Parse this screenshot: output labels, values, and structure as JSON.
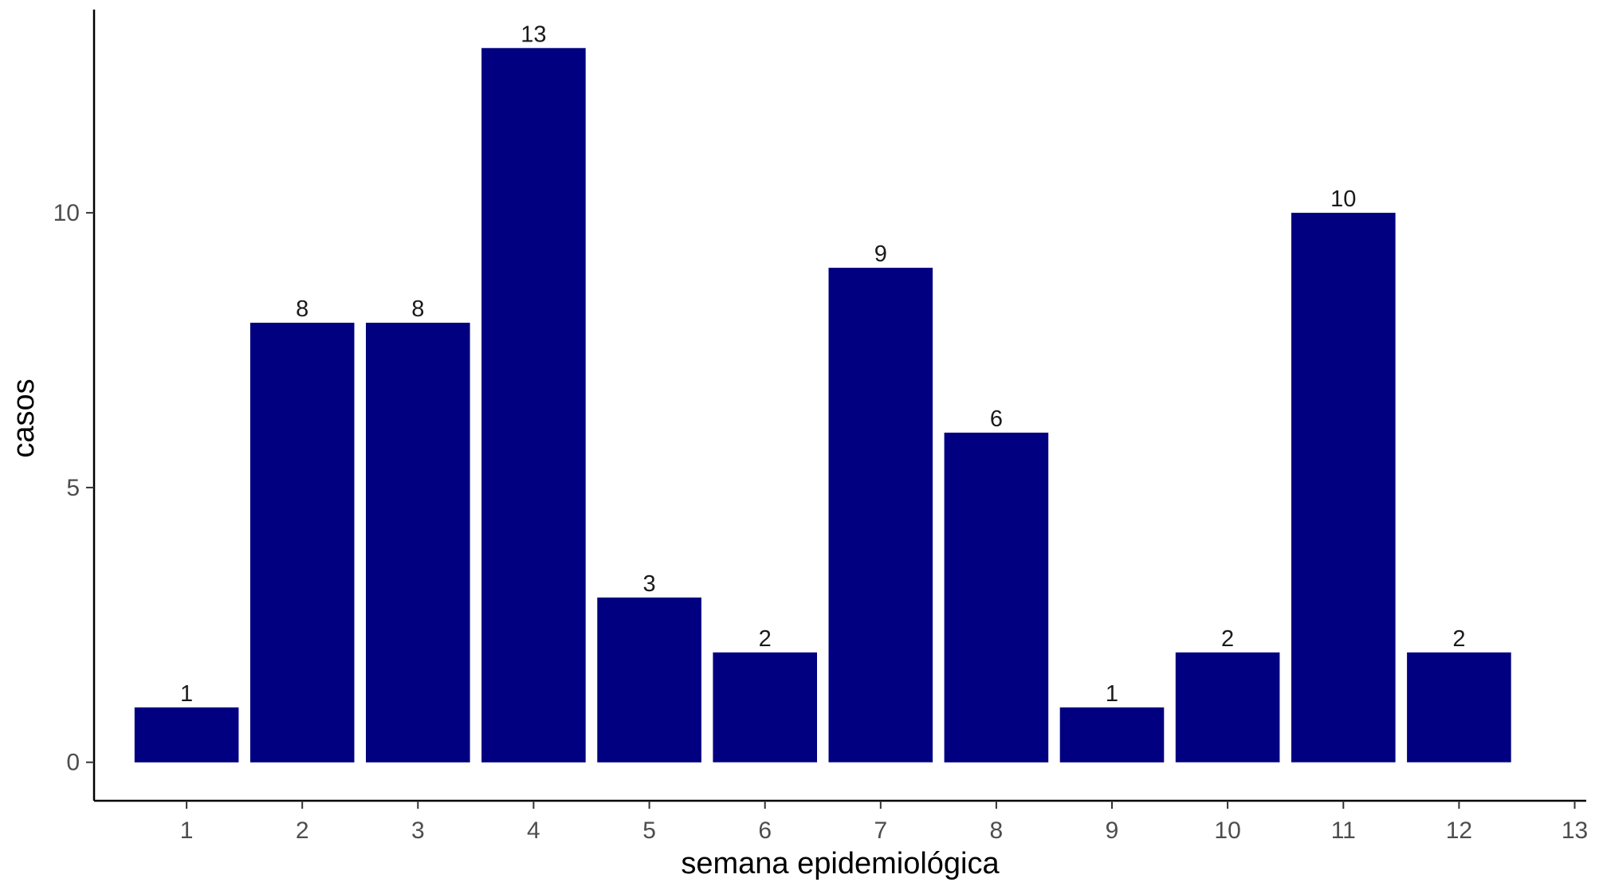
{
  "chart_data": {
    "type": "bar",
    "categories": [
      "1",
      "2",
      "3",
      "4",
      "5",
      "6",
      "7",
      "8",
      "9",
      "10",
      "11",
      "12"
    ],
    "values": [
      1,
      8,
      8,
      13,
      3,
      2,
      9,
      6,
      1,
      2,
      10,
      2
    ],
    "data_labels": [
      "1",
      "8",
      "8",
      "13",
      "3",
      "2",
      "9",
      "6",
      "1",
      "2",
      "10",
      "2"
    ],
    "x_ticks": [
      "1",
      "2",
      "3",
      "4",
      "5",
      "6",
      "7",
      "8",
      "9",
      "10",
      "11",
      "12",
      "13"
    ],
    "y_ticks": [
      "0",
      "5",
      "10"
    ],
    "xlabel": "semana epidemiológica",
    "ylabel": "casos",
    "xlim": [
      0.2,
      13.1
    ],
    "ylim": [
      -0.7,
      13.7
    ],
    "grid": false,
    "legend": "none",
    "bar_color": "#000080"
  }
}
